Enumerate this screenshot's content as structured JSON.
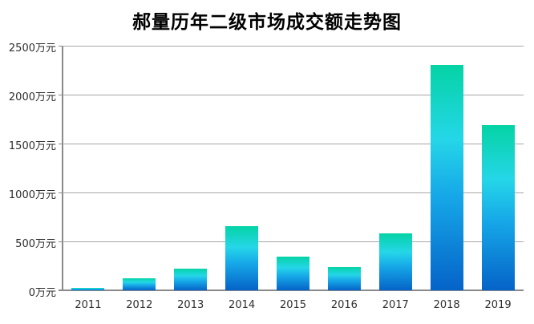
{
  "chart_data": {
    "type": "bar",
    "title": "郝量历年二级市场成交额走势图",
    "unit": "万元",
    "categories": [
      "2011",
      "2012",
      "2013",
      "2014",
      "2015",
      "2016",
      "2017",
      "2018",
      "2019"
    ],
    "values": [
      25,
      120,
      220,
      655,
      345,
      240,
      580,
      2300,
      1690
    ],
    "y_axis": {
      "max": 2500,
      "min": 0,
      "tick_interval": 500,
      "tick_values": [
        2500,
        2000,
        1500,
        1000,
        500,
        0
      ],
      "tick_labels": [
        "2500万元",
        "2000万元",
        "1500万元",
        "1000万元",
        "500万元",
        "0万元"
      ]
    },
    "grid": true,
    "legend": false,
    "colors": {
      "bar_gradient": [
        {
          "color": "#04d3a5",
          "stop": 0
        },
        {
          "color": "#25d6e8",
          "stop": 33
        },
        {
          "color": "#16a8e8",
          "stop": 58
        },
        {
          "color": "#0563c8",
          "stop": 100
        }
      ],
      "gridline": "#a6a6a6",
      "axis": "#898989",
      "label_text": "#2e2e2e",
      "title_text": "#000000",
      "background": "#ffffff"
    }
  }
}
